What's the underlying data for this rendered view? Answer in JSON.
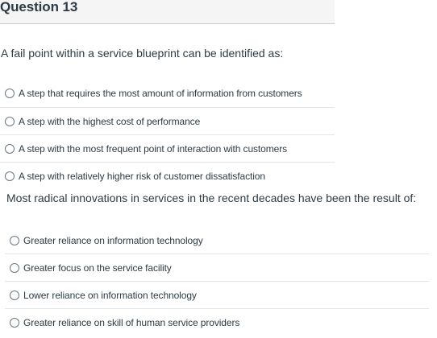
{
  "question_header": {
    "title": "Question 13"
  },
  "question_1": {
    "text": "A fail point within a service blueprint can be identified as:",
    "answers": [
      {
        "label": "A step that requires the most amount of information from customers",
        "selected": false
      },
      {
        "label": "A step with the highest cost of performance",
        "selected": false
      },
      {
        "label": "A step with the most frequent point of interaction with customers",
        "selected": false
      },
      {
        "label": "A step with relatively higher risk of customer dissatisfaction",
        "selected": false
      }
    ]
  },
  "question_2": {
    "text": "Most radical innovations in services in the recent decades have been the result of:",
    "answers": [
      {
        "label": "Greater reliance on information technology",
        "selected": false
      },
      {
        "label": "Greater focus on the service facility",
        "selected": false
      },
      {
        "label": "Lower reliance on information technology",
        "selected": false
      },
      {
        "label": "Greater reliance on skill of human service providers",
        "selected": false
      }
    ]
  }
}
